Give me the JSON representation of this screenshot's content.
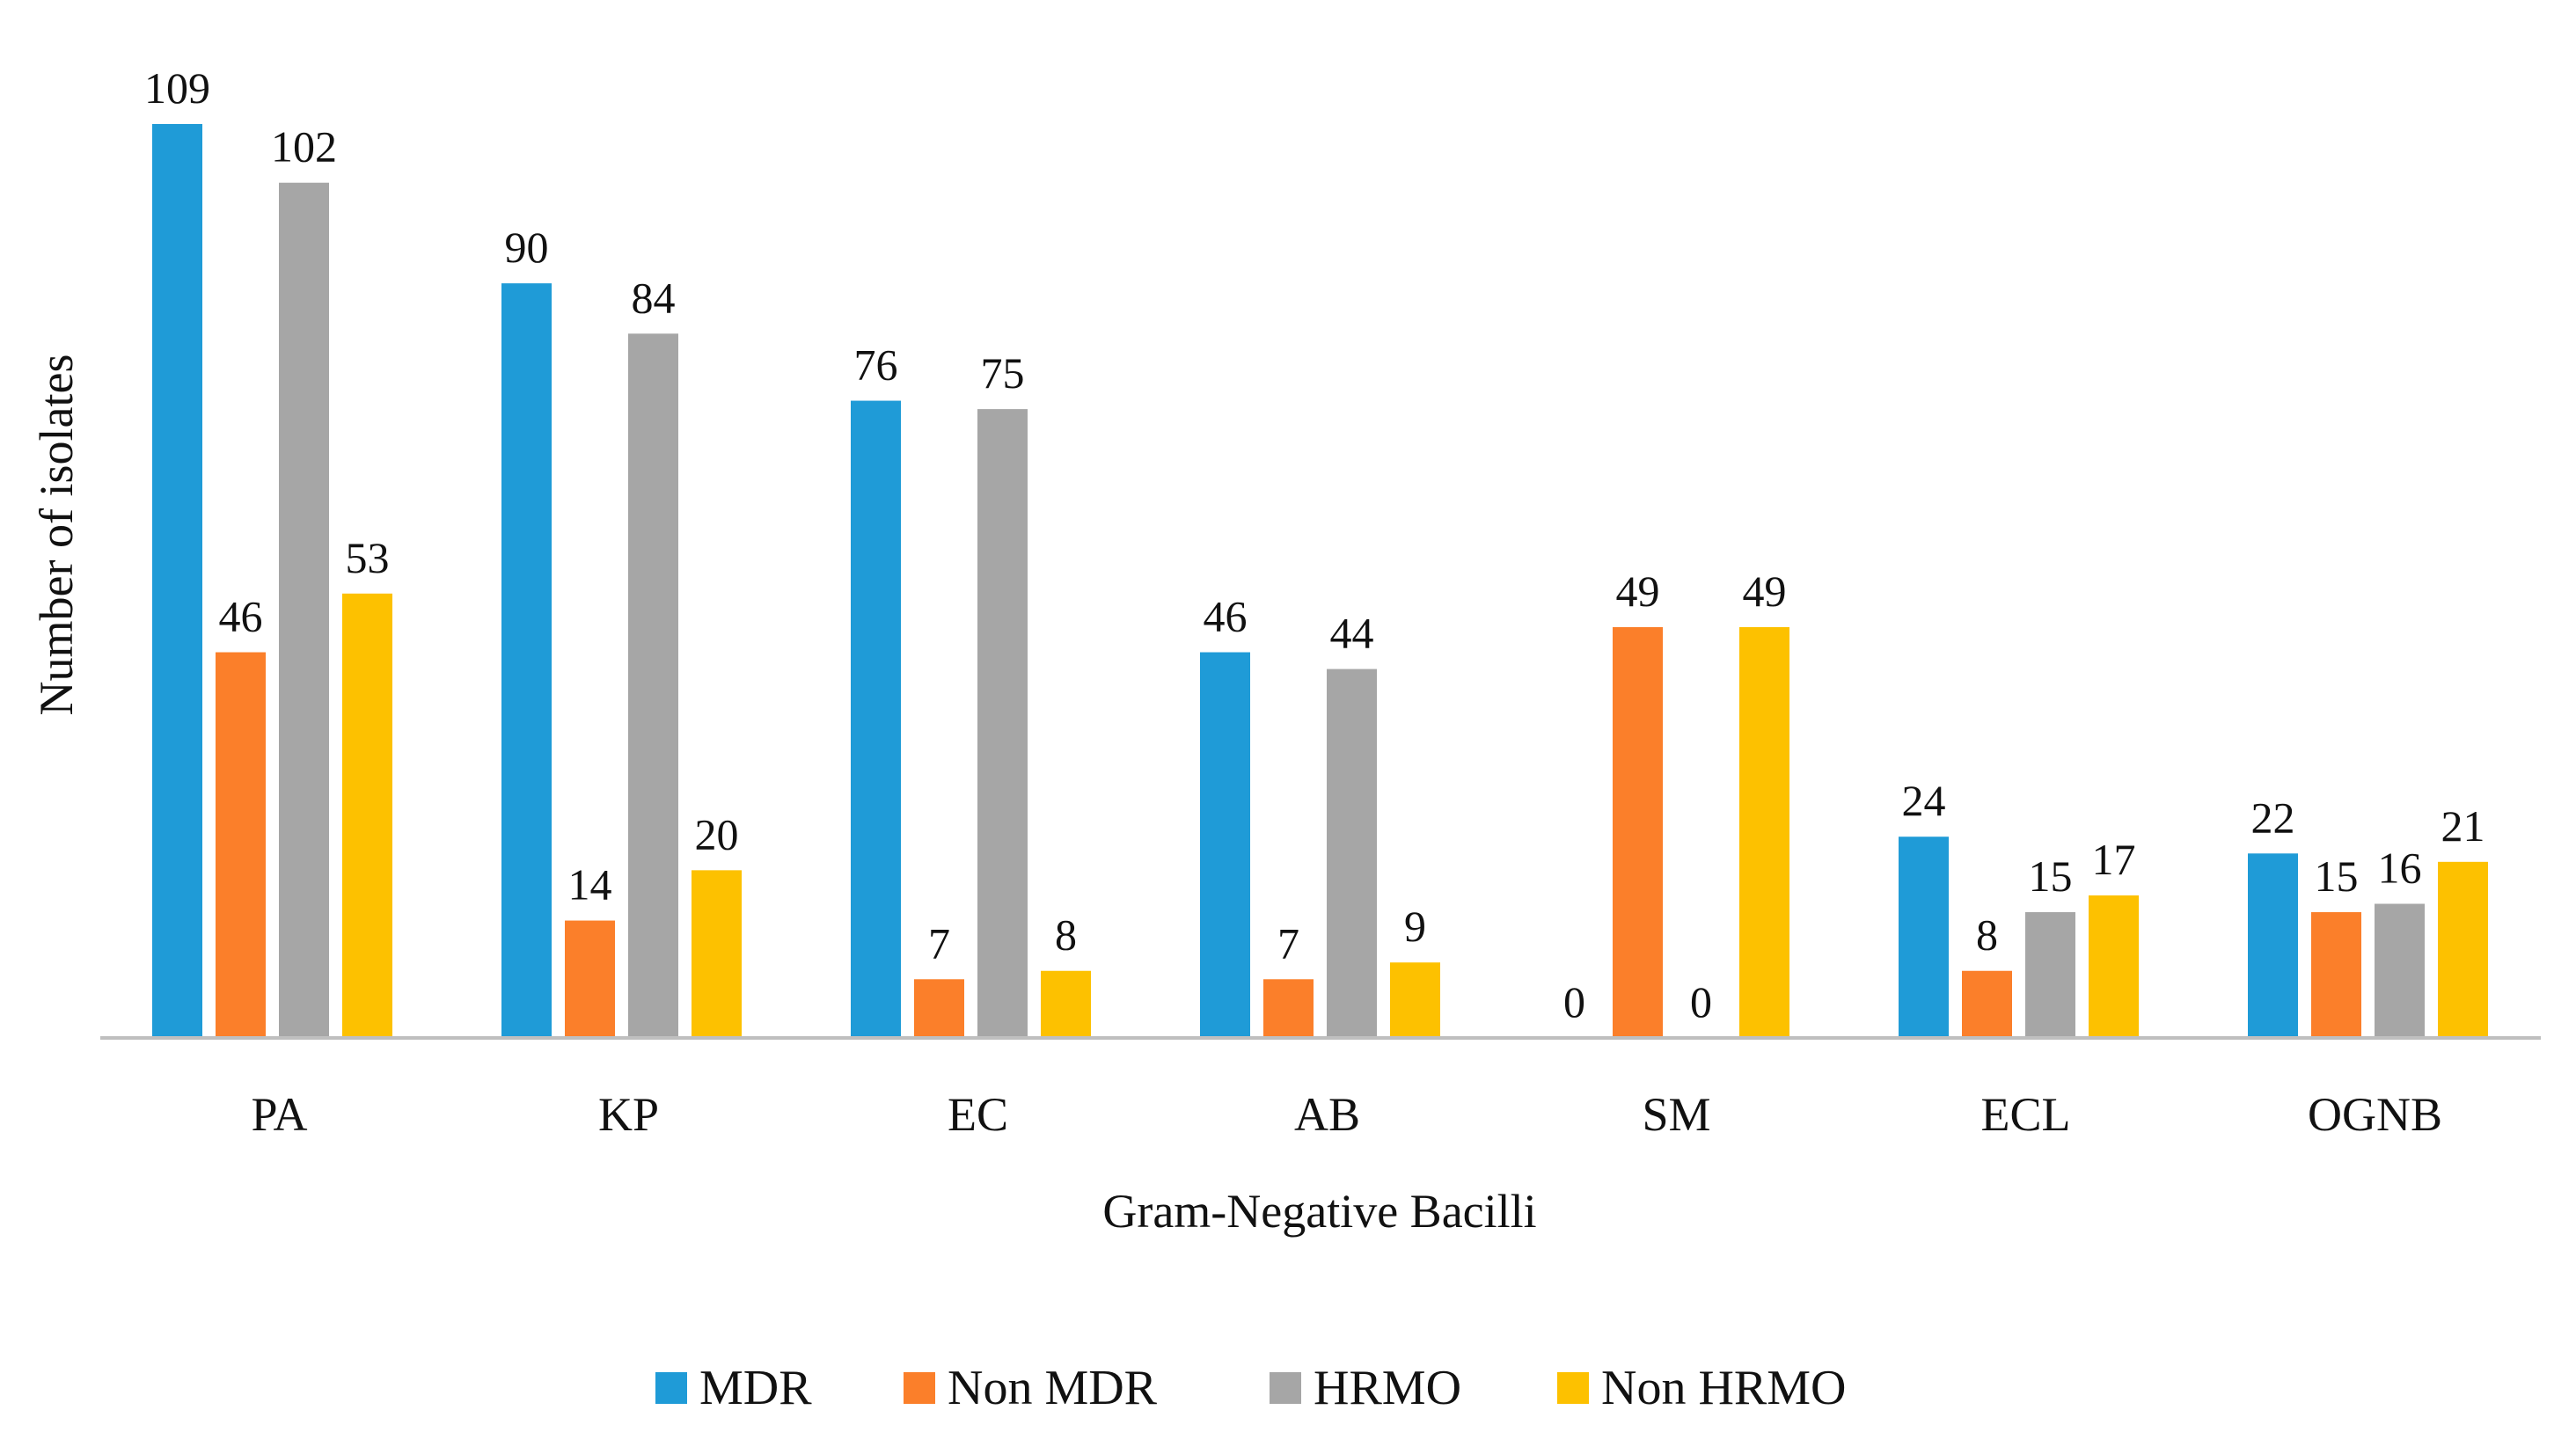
{
  "chart_data": {
    "type": "bar",
    "title": "",
    "xlabel": "Gram-Negative Bacilli",
    "ylabel": "Number of isolates",
    "ylim": [
      0,
      109
    ],
    "grid": false,
    "legend_position": "bottom",
    "categories": [
      "PA",
      "KP",
      "EC",
      "AB",
      "SM",
      "ECL",
      "OGNB"
    ],
    "series": [
      {
        "name": "MDR",
        "color": "#1F9BD7",
        "values": [
          109,
          90,
          76,
          46,
          0,
          24,
          22
        ]
      },
      {
        "name": "Non MDR",
        "color": "#FB7F2A",
        "values": [
          46,
          14,
          7,
          7,
          49,
          8,
          15
        ]
      },
      {
        "name": "HRMO",
        "color": "#A6A6A6",
        "values": [
          102,
          84,
          75,
          44,
          0,
          15,
          16
        ]
      },
      {
        "name": "Non HRMO",
        "color": "#FDC100",
        "values": [
          53,
          20,
          8,
          9,
          49,
          17,
          21
        ]
      }
    ]
  }
}
